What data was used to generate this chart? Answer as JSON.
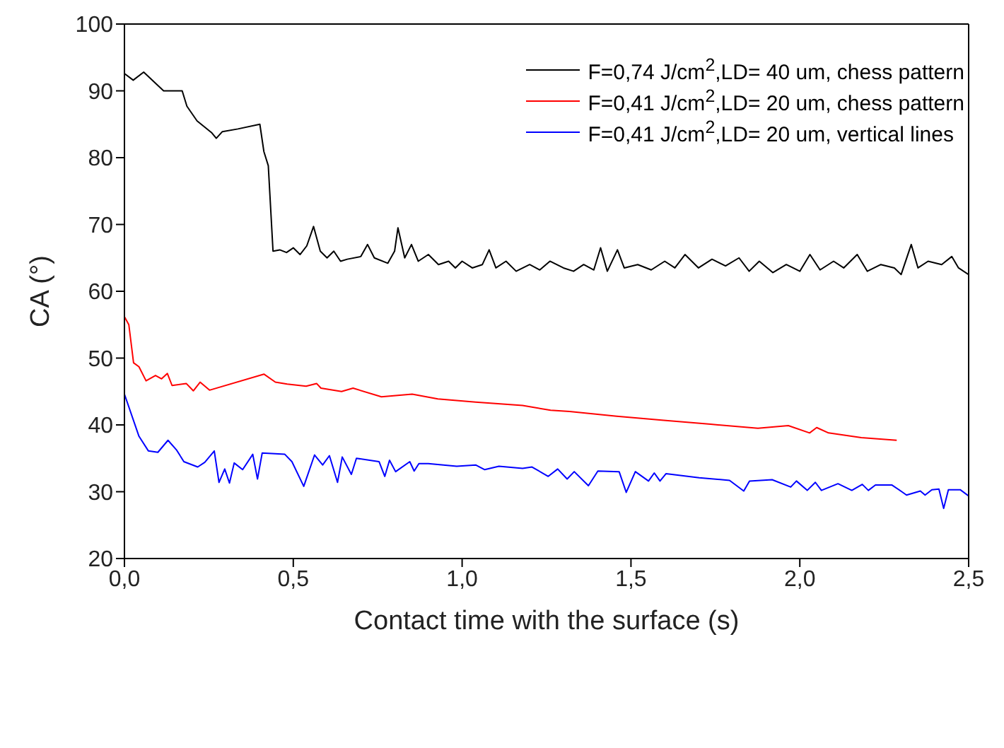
{
  "chart_data": {
    "type": "line",
    "xlabel": "Contact time with the surface (s)",
    "ylabel": "CA (°)",
    "xlim": [
      0,
      2.5
    ],
    "ylim": [
      20,
      100
    ],
    "xticks": [
      {
        "value": 0,
        "label": "0,0"
      },
      {
        "value": 0.5,
        "label": "0,5"
      },
      {
        "value": 1,
        "label": "1,0"
      },
      {
        "value": 1.5,
        "label": "1,5"
      },
      {
        "value": 2,
        "label": "2,0"
      },
      {
        "value": 2.5,
        "label": "2,5"
      }
    ],
    "yticks": [
      20,
      30,
      40,
      50,
      60,
      70,
      80,
      90,
      100
    ],
    "grid": false,
    "legend": "top right",
    "marker": "none",
    "line_style": "solid",
    "series": [
      {
        "name": "F=0,74 J/cm$^{2}$,LD= 40 um, chess pattern",
        "color": "#000000",
        "x": [
          0,
          0.026,
          0.057,
          0.116,
          0.171,
          0.185,
          0.215,
          0.259,
          0.272,
          0.29,
          0.336,
          0.401,
          0.413,
          0.426,
          0.44,
          0.46,
          0.48,
          0.5,
          0.52,
          0.54,
          0.56,
          0.58,
          0.6,
          0.62,
          0.64,
          0.66,
          0.7,
          0.72,
          0.74,
          0.78,
          0.8,
          0.81,
          0.83,
          0.85,
          0.87,
          0.9,
          0.93,
          0.96,
          0.98,
          1.0,
          1.03,
          1.06,
          1.08,
          1.1,
          1.13,
          1.16,
          1.2,
          1.23,
          1.26,
          1.3,
          1.33,
          1.36,
          1.39,
          1.41,
          1.43,
          1.46,
          1.48,
          1.52,
          1.56,
          1.6,
          1.63,
          1.66,
          1.7,
          1.74,
          1.78,
          1.82,
          1.85,
          1.88,
          1.92,
          1.96,
          2.0,
          2.03,
          2.06,
          2.1,
          2.13,
          2.17,
          2.2,
          2.24,
          2.28,
          2.3,
          2.33,
          2.35,
          2.38,
          2.42,
          2.45,
          2.47,
          2.5
        ],
        "values": [
          92.6,
          91.6,
          92.8,
          90.0,
          90.0,
          87.7,
          85.5,
          83.7,
          82.9,
          83.9,
          84.3,
          85.0,
          80.9,
          78.8,
          66.0,
          66.2,
          65.8,
          66.5,
          65.5,
          66.8,
          69.7,
          66.0,
          65.0,
          66.0,
          64.5,
          64.8,
          65.2,
          67.0,
          65.0,
          64.2,
          66.0,
          69.5,
          65.0,
          67.0,
          64.5,
          65.5,
          64.0,
          64.5,
          63.5,
          64.5,
          63.5,
          64.0,
          66.2,
          63.5,
          64.5,
          63.0,
          64.0,
          63.2,
          64.5,
          63.5,
          63.0,
          64.0,
          63.2,
          66.5,
          63.0,
          66.2,
          63.5,
          64.0,
          63.2,
          64.5,
          63.5,
          65.5,
          63.5,
          64.8,
          63.8,
          65.0,
          63.0,
          64.5,
          62.8,
          64.0,
          63.0,
          65.5,
          63.2,
          64.5,
          63.5,
          65.5,
          63.0,
          64.0,
          63.5,
          62.5,
          67.0,
          63.5,
          64.5,
          64.0,
          65.2,
          63.5,
          62.5
        ]
      },
      {
        "name": "F=0,41 J/cm$^{2}$,LD= 20 um, chess pattern",
        "color": "#ff0000",
        "x": [
          0,
          0.013,
          0.027,
          0.043,
          0.064,
          0.092,
          0.11,
          0.127,
          0.141,
          0.183,
          0.204,
          0.224,
          0.252,
          0.413,
          0.447,
          0.482,
          0.538,
          0.569,
          0.582,
          0.643,
          0.677,
          0.761,
          0.852,
          0.928,
          1.04,
          1.179,
          1.262,
          1.318,
          1.458,
          1.597,
          1.736,
          1.876,
          1.966,
          2.029,
          2.05,
          2.085,
          2.182,
          2.287
        ],
        "values": [
          56.2,
          55.0,
          49.3,
          48.7,
          46.6,
          47.4,
          46.9,
          47.7,
          45.9,
          46.2,
          45.1,
          46.4,
          45.2,
          47.6,
          46.4,
          46.1,
          45.8,
          46.2,
          45.5,
          45.0,
          45.5,
          44.2,
          44.6,
          43.9,
          43.4,
          42.9,
          42.2,
          42.0,
          41.3,
          40.7,
          40.1,
          39.5,
          39.9,
          38.8,
          39.6,
          38.8,
          38.1,
          37.7
        ]
      },
      {
        "name": "F=0,41 J/cm$^{2}$,LD= 20 um, vertical lines",
        "color": "#0000ff",
        "x": [
          0,
          0.043,
          0.071,
          0.099,
          0.129,
          0.155,
          0.176,
          0.217,
          0.238,
          0.266,
          0.28,
          0.297,
          0.311,
          0.325,
          0.35,
          0.38,
          0.394,
          0.408,
          0.475,
          0.496,
          0.531,
          0.563,
          0.587,
          0.607,
          0.631,
          0.645,
          0.672,
          0.687,
          0.754,
          0.771,
          0.785,
          0.803,
          0.845,
          0.858,
          0.872,
          0.9,
          0.984,
          1.04,
          1.067,
          1.109,
          1.179,
          1.207,
          1.255,
          1.283,
          1.311,
          1.332,
          1.374,
          1.402,
          1.465,
          1.486,
          1.513,
          1.552,
          1.569,
          1.586,
          1.604,
          1.702,
          1.792,
          1.834,
          1.851,
          1.918,
          1.973,
          1.99,
          2.022,
          2.046,
          2.064,
          2.113,
          2.154,
          2.185,
          2.203,
          2.224,
          2.273,
          2.302,
          2.316,
          2.357,
          2.371,
          2.391,
          2.412,
          2.426,
          2.44,
          2.475,
          2.499
        ],
        "values": [
          44.6,
          38.3,
          36.1,
          35.9,
          37.7,
          36.2,
          34.5,
          33.7,
          34.4,
          36.1,
          31.4,
          33.4,
          31.3,
          34.3,
          33.3,
          35.6,
          31.9,
          35.8,
          35.6,
          34.5,
          30.8,
          35.5,
          34.0,
          35.4,
          31.4,
          35.2,
          32.6,
          35.0,
          34.5,
          32.3,
          34.7,
          33.0,
          34.5,
          33.1,
          34.2,
          34.2,
          33.8,
          34.0,
          33.3,
          33.8,
          33.5,
          33.7,
          32.3,
          33.4,
          31.9,
          33.0,
          30.9,
          33.1,
          33.0,
          29.9,
          33.0,
          31.6,
          32.8,
          31.6,
          32.7,
          32.1,
          31.7,
          30.1,
          31.6,
          31.8,
          30.7,
          31.6,
          30.2,
          31.4,
          30.2,
          31.2,
          30.2,
          31.1,
          30.2,
          31.0,
          31.0,
          30.0,
          29.5,
          30.1,
          29.5,
          30.3,
          30.4,
          27.5,
          30.3,
          30.3,
          29.4
        ]
      }
    ]
  }
}
